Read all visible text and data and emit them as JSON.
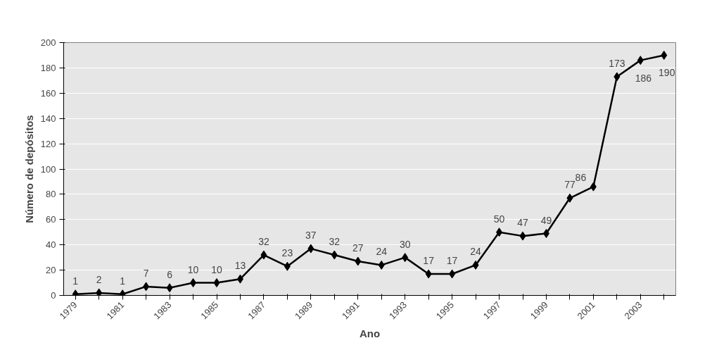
{
  "chart_data": {
    "type": "line",
    "xlabel": "Ano",
    "ylabel": "Número de depósitos",
    "categories": [
      "1979",
      null,
      "1981",
      null,
      "1983",
      null,
      "1985",
      null,
      "1987",
      null,
      "1989",
      null,
      "1991",
      null,
      "1993",
      null,
      "1995",
      null,
      "1997",
      null,
      "1999",
      null,
      "2001",
      null,
      "2003",
      null
    ],
    "series": [
      {
        "color": "#000000",
        "values": [
          1,
          2,
          1,
          7,
          6,
          10,
          10,
          13,
          32,
          23,
          37,
          32,
          27,
          24,
          30,
          17,
          17,
          24,
          50,
          47,
          49,
          77,
          86,
          173,
          186,
          190
        ]
      }
    ],
    "ylim": [
      0,
      200
    ],
    "yticks": [
      0,
      20,
      40,
      60,
      80,
      100,
      120,
      140,
      160,
      180,
      200
    ],
    "grid": "y",
    "marker": "diamond",
    "line_style": "solid",
    "data_labels": true
  }
}
